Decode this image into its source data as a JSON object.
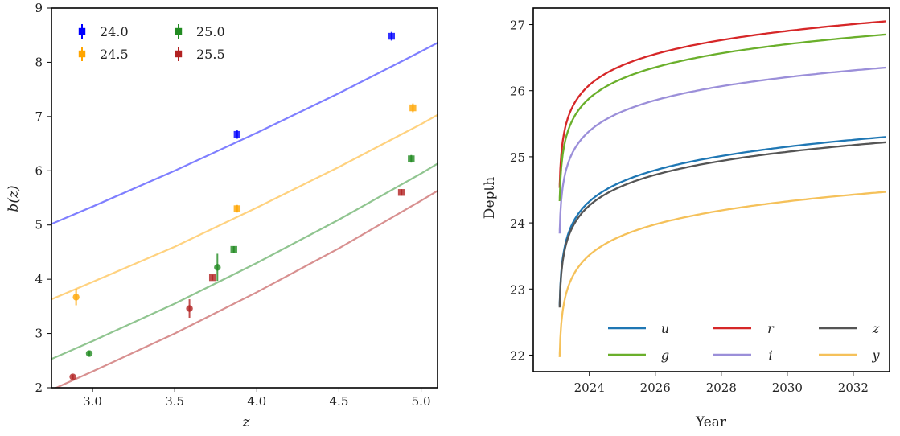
{
  "chart_data": [
    {
      "type": "scatter",
      "xlabel": "z",
      "ylabel": "b(z)",
      "xlim": [
        2.75,
        5.1
      ],
      "ylim": [
        2,
        9
      ],
      "xticks": [
        "3.0",
        "3.5",
        "4.0",
        "4.5",
        "5.0"
      ],
      "yticks": [
        "2",
        "3",
        "4",
        "5",
        "6",
        "7",
        "8",
        "9"
      ],
      "legend_placement": "top-left",
      "series": [
        {
          "name": "24.0",
          "color": "#0000ff",
          "marker": "square",
          "points": [
            {
              "x": 3.88,
              "y": 6.67,
              "err": 0.08
            },
            {
              "x": 4.82,
              "y": 8.48,
              "err": 0.08
            }
          ],
          "fit": [
            [
              2.75,
              5.02
            ],
            [
              3.0,
              5.34
            ],
            [
              3.5,
              6.0
            ],
            [
              4.0,
              6.7
            ],
            [
              4.5,
              7.43
            ],
            [
              5.0,
              8.2
            ],
            [
              5.1,
              8.36
            ]
          ]
        },
        {
          "name": "24.5",
          "color": "#ffa500",
          "marker": "mixed",
          "points": [
            {
              "x": 2.9,
              "y": 3.67,
              "err": 0.15,
              "shape": "circle"
            },
            {
              "x": 3.88,
              "y": 5.3,
              "err": 0.07,
              "shape": "square"
            },
            {
              "x": 4.95,
              "y": 7.16,
              "err": 0.08,
              "shape": "square"
            }
          ],
          "fit": [
            [
              2.75,
              3.63
            ],
            [
              3.0,
              3.95
            ],
            [
              3.5,
              4.6
            ],
            [
              4.0,
              5.32
            ],
            [
              4.5,
              6.07
            ],
            [
              5.0,
              6.86
            ],
            [
              5.1,
              7.03
            ]
          ]
        },
        {
          "name": "25.0",
          "color": "#228b22",
          "marker": "mixed",
          "points": [
            {
              "x": 2.98,
              "y": 2.63,
              "err": 0.05,
              "shape": "circle"
            },
            {
              "x": 3.76,
              "y": 4.22,
              "err": 0.25,
              "shape": "circle"
            },
            {
              "x": 3.86,
              "y": 4.55,
              "err": 0.06,
              "shape": "square"
            },
            {
              "x": 4.94,
              "y": 6.22,
              "err": 0.07,
              "shape": "square"
            }
          ],
          "fit": [
            [
              2.75,
              2.53
            ],
            [
              3.0,
              2.86
            ],
            [
              3.5,
              3.55
            ],
            [
              4.0,
              4.3
            ],
            [
              4.5,
              5.1
            ],
            [
              5.0,
              5.95
            ],
            [
              5.1,
              6.13
            ]
          ]
        },
        {
          "name": "25.5",
          "color": "#b22222",
          "marker": "mixed",
          "points": [
            {
              "x": 2.88,
              "y": 2.2,
              "err": 0.04,
              "shape": "circle"
            },
            {
              "x": 3.59,
              "y": 3.46,
              "err": 0.17,
              "shape": "circle"
            },
            {
              "x": 3.73,
              "y": 4.03,
              "err": 0.05,
              "shape": "square"
            },
            {
              "x": 4.88,
              "y": 5.6,
              "err": 0.06,
              "shape": "square"
            }
          ],
          "fit": [
            [
              2.75,
              1.96
            ],
            [
              3.0,
              2.3
            ],
            [
              3.5,
              3.0
            ],
            [
              4.0,
              3.76
            ],
            [
              4.5,
              4.57
            ],
            [
              5.0,
              5.45
            ],
            [
              5.1,
              5.63
            ]
          ]
        }
      ]
    },
    {
      "type": "line",
      "xlabel": "Year",
      "ylabel": "Depth",
      "xlim": [
        2022.3,
        2033.1
      ],
      "ylim": [
        21.75,
        27.25
      ],
      "xticks": [
        "2024",
        "2026",
        "2028",
        "2030",
        "2032"
      ],
      "yticks": [
        "22",
        "23",
        "24",
        "25",
        "26",
        "27"
      ],
      "legend_placement": "lower-right",
      "x_start": 2023.1,
      "x_end": 2033.0,
      "series": [
        {
          "name": "u",
          "color": "#1f77b4",
          "start": 22.75,
          "end": 25.3
        },
        {
          "name": "r",
          "color": "#d62728",
          "start": 24.53,
          "end": 27.05
        },
        {
          "name": "z",
          "color": "#555555",
          "start": 22.72,
          "end": 25.22
        },
        {
          "name": "g",
          "color": "#6aaf2b",
          "start": 24.33,
          "end": 26.85
        },
        {
          "name": "i",
          "color": "#9b8fd9",
          "start": 23.84,
          "end": 26.35
        },
        {
          "name": "y",
          "color": "#f5c15a",
          "start": 21.97,
          "end": 24.47
        }
      ]
    }
  ]
}
